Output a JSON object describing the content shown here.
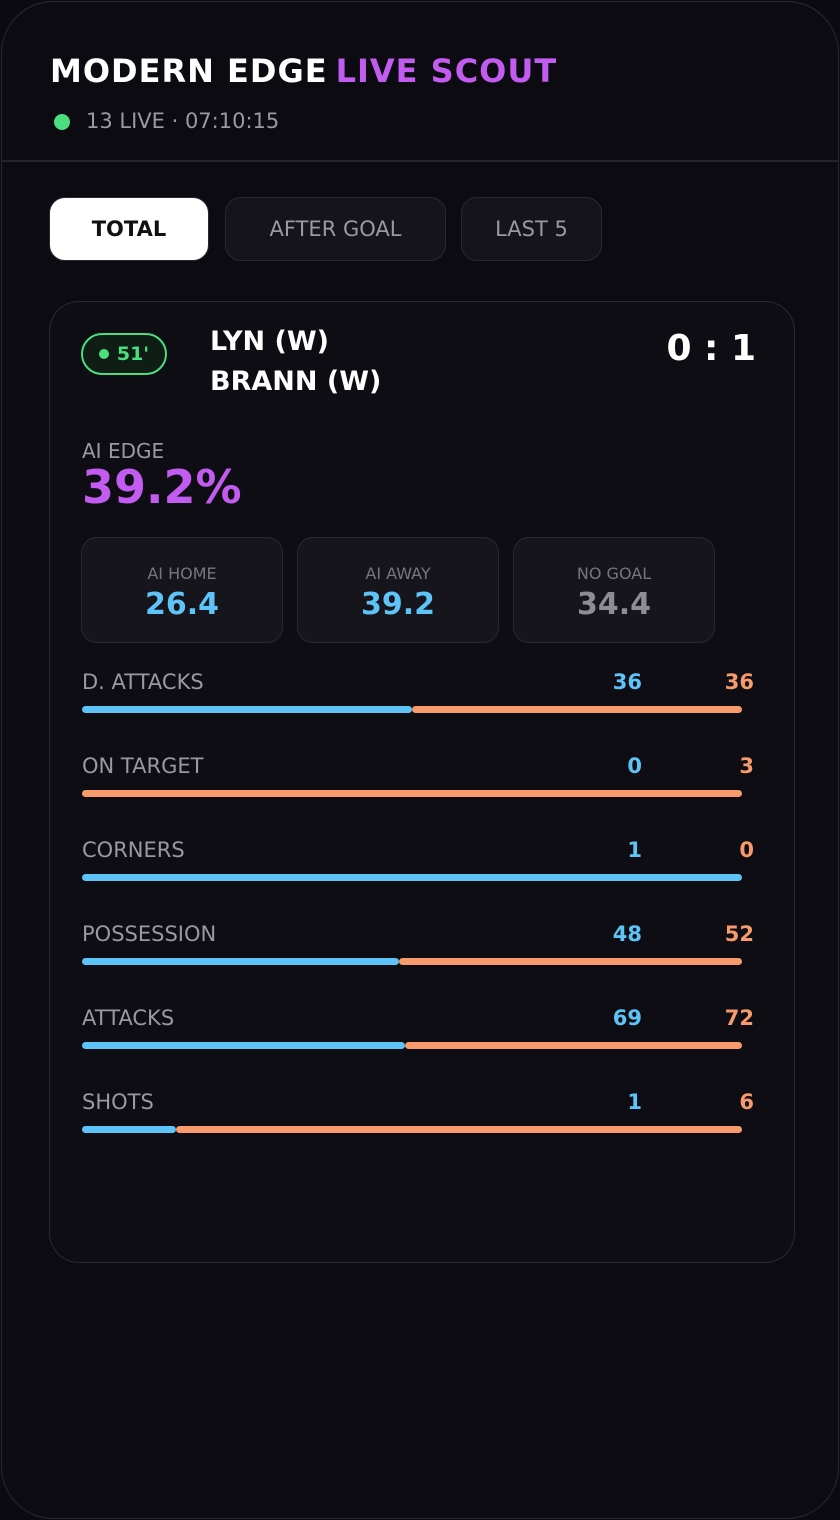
{
  "header": {
    "brand": "MODERN EDGE",
    "brand_accent": "LIVE SCOUT",
    "status": "13 LIVE · 07:10:15"
  },
  "tabs": [
    "TOTAL",
    "AFTER GOAL",
    "LAST 5"
  ],
  "match": {
    "minute": "51'",
    "home": "LYN (W)",
    "away": "BRANN (W)",
    "score": "0 : 1",
    "edge_label": "AI EDGE",
    "edge": "39.2%",
    "boxes": [
      {
        "label": "AI HOME",
        "value": 26.4
      },
      {
        "label": "AI AWAY",
        "value": 39.2
      },
      {
        "label": "NO GOAL",
        "value": 34.4
      }
    ],
    "stats": [
      {
        "label": "D. ATTACKS",
        "home": 36,
        "away": 36
      },
      {
        "label": "ON TARGET",
        "home": 0,
        "away": 3
      },
      {
        "label": "CORNERS",
        "home": 1,
        "away": 0
      },
      {
        "label": "POSSESSION",
        "home": 48,
        "away": 52
      },
      {
        "label": "ATTACKS",
        "home": 69,
        "away": 72
      },
      {
        "label": "SHOTS",
        "home": 1,
        "away": 6
      }
    ]
  }
}
